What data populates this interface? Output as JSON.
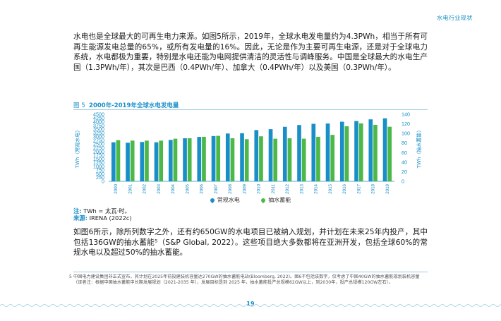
{
  "header": {
    "title": "水电行业现状"
  },
  "para1": "水电也是全球最大的可再生电力来源。如图5所示，2019年，全球水电发电量约为4.3PWh，相当于所有可再生能源发电总量的65%，或所有发电量的16%。因此，无论是作为主要可再生电源，还是对于全球电力系统，水电都极为重要，特别是水电还能为电网提供清洁的灵活性与调峰服务。中国是全球最大的水电生产国（1.3PWh/年），其次是巴西（0.4PWh/年）、加拿大（0.4PWh/年）以及美国（0.3PWh/年）。",
  "figure": {
    "label": "图 5",
    "title": "2000年-2019年全球水电发电量"
  },
  "chart_data": {
    "type": "bar",
    "x": [
      "2000",
      "2001",
      "2002",
      "2003",
      "2004",
      "2005",
      "2006",
      "2007",
      "2008",
      "2009",
      "2010",
      "2011",
      "2012",
      "2013",
      "2014",
      "2015",
      "2016",
      "2017",
      "2018",
      "2019"
    ],
    "ylabel_left": "TWh（常规水电）",
    "ylabel_right": "TWh（抽水蓄能）",
    "yticks_left": [
      "0",
      "250",
      "500",
      "750",
      "1000",
      "1250",
      "1500",
      "1750",
      "2000",
      "2250",
      "2500",
      "2750",
      "3000",
      "3250",
      "3500",
      "3750",
      "4000",
      "4250",
      "4500"
    ],
    "yticks_right": [
      "0",
      "20",
      "40",
      "60",
      "80",
      "100",
      "120",
      "140"
    ],
    "ylim_left": [
      0,
      4500
    ],
    "ylim_right": [
      0,
      140
    ],
    "series": [
      {
        "name": "常规水电",
        "axis": "left",
        "color": "#1a8fc7",
        "values": [
          2620,
          2590,
          2640,
          2620,
          2780,
          2890,
          2980,
          3040,
          3210,
          3230,
          3440,
          3500,
          3660,
          3780,
          3860,
          3880,
          4000,
          4050,
          4160,
          4230
        ]
      },
      {
        "name": "抽水蓄能",
        "axis": "right",
        "color": "#4cb848",
        "values": [
          86,
          85,
          85,
          85,
          89,
          90,
          93,
          95,
          90,
          88,
          94,
          89,
          90,
          89,
          93,
          97,
          115,
          121,
          118,
          114
        ]
      }
    ]
  },
  "note": {
    "label": "注:",
    "text": "TWh = 太瓦·时。",
    "source_label": "来源:",
    "source_text": "IRENA (2022c)"
  },
  "para2": "如图6所示，除所列数字之外，还有约650GW的水电项目已被纳入规划，并计划在未来25年内投产，其中包括136GW的抽水蓄能⁵（S&P Global, 2022）。这些项目绝大多数都将在亚洲开发，包括全球60%的常规水电以及超过50%的抽水蓄能。",
  "footnote": {
    "mark": "5",
    "text": "中国电力建设集团非正式宣布，其计划在2025年前投建装机容量达270GW的抽水蓄能电站(Bloomberg, 2022)。图6不包括该数字，仅考虑了中国40GW的抽水蓄能规划装机容量（译者注：根据中国抽水蓄能中长期发展规划（2021-2035 年），发展目标是到 2025 年，抽水蓄能投产总规模62GW以上，到2030年，投产总规模120GW左右）。"
  },
  "page": {
    "number": "19"
  }
}
